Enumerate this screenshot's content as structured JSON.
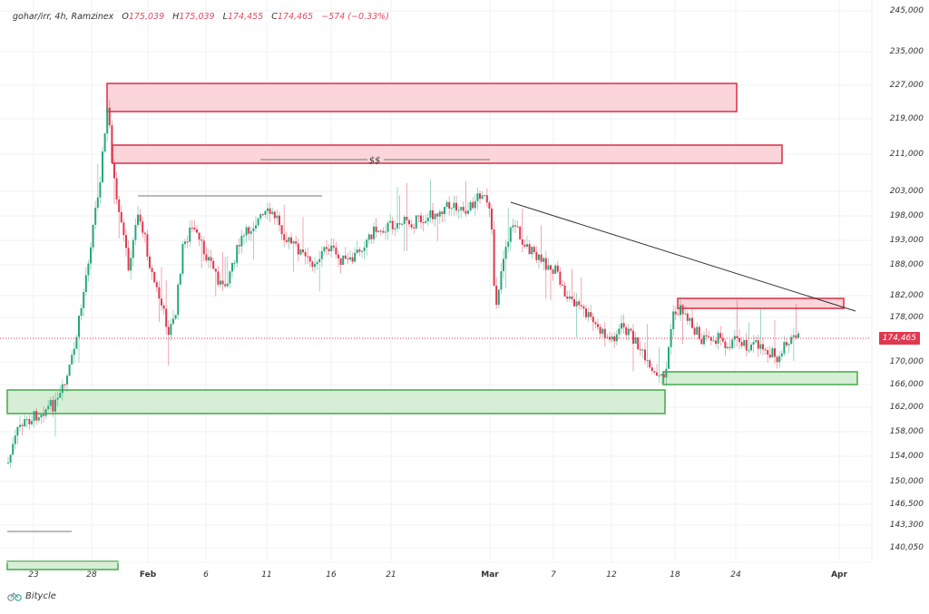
{
  "header": {
    "symbol": "gohar/irr, 4h, Ramzinex",
    "open_label": "O",
    "open": "175,039",
    "high_label": "H",
    "high": "175,039",
    "low_label": "L",
    "low": "174,455",
    "close_label": "C",
    "close": "174,465",
    "change": "−574 (−0.33%)"
  },
  "price_tag": "174,465",
  "brand": {
    "name": "Bitycle",
    "icon": "bicycle-logo-icon"
  },
  "colors": {
    "up": "#26a67a",
    "down": "#e0384f",
    "supply_fill": "#fbd5da",
    "supply_border": "#e0384f",
    "demand_fill": "#d6eed6",
    "demand_border": "#4caf50",
    "grid": "#f0f0f0",
    "trendline": "#333333"
  },
  "chart_data": {
    "type": "candlestick",
    "title": "gohar/irr, 4h, Ramzinex",
    "xlabel": "",
    "ylabel": "",
    "y_ticks": [
      {
        "label": "245,000",
        "y": 12
      },
      {
        "label": "235,000",
        "y": 57
      },
      {
        "label": "227,000",
        "y": 94
      },
      {
        "label": "219,000",
        "y": 131
      },
      {
        "label": "211,000",
        "y": 170
      },
      {
        "label": "203,000",
        "y": 211
      },
      {
        "label": "198,000",
        "y": 238
      },
      {
        "label": "193,000",
        "y": 265
      },
      {
        "label": "188,000",
        "y": 292
      },
      {
        "label": "182,000",
        "y": 326
      },
      {
        "label": "178,000",
        "y": 350
      },
      {
        "label": "170,000",
        "y": 399
      },
      {
        "label": "166,000",
        "y": 424
      },
      {
        "label": "162,000",
        "y": 449
      },
      {
        "label": "158,000",
        "y": 476
      },
      {
        "label": "154,000",
        "y": 503
      },
      {
        "label": "150,000",
        "y": 531
      },
      {
        "label": "146,500",
        "y": 556
      },
      {
        "label": "143,300",
        "y": 579
      },
      {
        "label": "140,050",
        "y": 604
      }
    ],
    "x_ticks": [
      {
        "label": "23",
        "x": 37,
        "month": false
      },
      {
        "label": "28",
        "x": 101,
        "month": false
      },
      {
        "label": "Feb",
        "x": 163,
        "month": true
      },
      {
        "label": "6",
        "x": 227,
        "month": false
      },
      {
        "label": "11",
        "x": 294,
        "month": false
      },
      {
        "label": "16",
        "x": 365,
        "month": false
      },
      {
        "label": "21",
        "x": 431,
        "month": false
      },
      {
        "label": "Mar",
        "x": 540,
        "month": true
      },
      {
        "label": "7",
        "x": 610,
        "month": false
      },
      {
        "label": "12",
        "x": 674,
        "month": false
      },
      {
        "label": "18",
        "x": 744,
        "month": false
      },
      {
        "label": "24",
        "x": 811,
        "month": false
      },
      {
        "label": "Apr",
        "x": 925,
        "month": true
      }
    ],
    "last_price": 174465,
    "ohlc_last": {
      "open": 175039,
      "high": 175039,
      "low": 174455,
      "close": 174465,
      "change": -574,
      "change_pct": -0.33
    },
    "path_points": [
      [
        8,
        510
      ],
      [
        20,
        470
      ],
      [
        35,
        460
      ],
      [
        50,
        450
      ],
      [
        62,
        445
      ],
      [
        72,
        420
      ],
      [
        80,
        390
      ],
      [
        90,
        330
      ],
      [
        100,
        260
      ],
      [
        110,
        190
      ],
      [
        118,
        115
      ],
      [
        122,
        170
      ],
      [
        128,
        230
      ],
      [
        135,
        260
      ],
      [
        142,
        300
      ],
      [
        150,
        230
      ],
      [
        158,
        260
      ],
      [
        166,
        300
      ],
      [
        175,
        330
      ],
      [
        185,
        365
      ],
      [
        192,
        350
      ],
      [
        200,
        275
      ],
      [
        210,
        250
      ],
      [
        220,
        270
      ],
      [
        232,
        290
      ],
      [
        245,
        320
      ],
      [
        255,
        290
      ],
      [
        265,
        265
      ],
      [
        280,
        245
      ],
      [
        295,
        235
      ],
      [
        305,
        240
      ],
      [
        315,
        265
      ],
      [
        328,
        275
      ],
      [
        340,
        290
      ],
      [
        350,
        285
      ],
      [
        360,
        270
      ],
      [
        372,
        285
      ],
      [
        385,
        290
      ],
      [
        395,
        275
      ],
      [
        410,
        255
      ],
      [
        425,
        250
      ],
      [
        440,
        245
      ],
      [
        455,
        245
      ],
      [
        470,
        240
      ],
      [
        485,
        230
      ],
      [
        500,
        225
      ],
      [
        515,
        232
      ],
      [
        530,
        210
      ],
      [
        540,
        240
      ],
      [
        545,
        340
      ],
      [
        555,
        275
      ],
      [
        565,
        245
      ],
      [
        575,
        265
      ],
      [
        590,
        285
      ],
      [
        600,
        290
      ],
      [
        612,
        300
      ],
      [
        622,
        325
      ],
      [
        635,
        335
      ],
      [
        648,
        350
      ],
      [
        660,
        365
      ],
      [
        672,
        375
      ],
      [
        685,
        360
      ],
      [
        695,
        370
      ],
      [
        705,
        385
      ],
      [
        715,
        410
      ],
      [
        725,
        418
      ],
      [
        733,
        410
      ],
      [
        740,
        350
      ],
      [
        750,
        340
      ],
      [
        760,
        355
      ],
      [
        772,
        375
      ],
      [
        785,
        370
      ],
      [
        800,
        380
      ],
      [
        812,
        372
      ],
      [
        825,
        382
      ],
      [
        838,
        380
      ],
      [
        850,
        390
      ],
      [
        858,
        400
      ],
      [
        865,
        378
      ],
      [
        872,
        375
      ],
      [
        880,
        371
      ]
    ],
    "zones": [
      {
        "type": "supply",
        "x1": 118,
        "y1": 92,
        "x2": 812,
        "y2": 123
      },
      {
        "type": "supply",
        "x1": 124,
        "y1": 160,
        "x2": 862,
        "y2": 180
      },
      {
        "type": "supply",
        "x1": 747,
        "y1": 329,
        "x2": 930,
        "y2": 340
      },
      {
        "type": "demand",
        "x1": 8,
        "y1": 430,
        "x2": 733,
        "y2": 456
      },
      {
        "type": "demand",
        "x1": 731,
        "y1": 410,
        "x2": 945,
        "y2": 424
      },
      {
        "type": "demand",
        "x1": 8,
        "y1": 619,
        "x2": 130,
        "y2": 628
      }
    ],
    "lines": [
      {
        "kind": "horizontal",
        "x1": 287,
        "y1": 176,
        "x2": 540,
        "y2": 176,
        "label": "$$",
        "label_x": 413
      },
      {
        "kind": "horizontal",
        "x1": 152,
        "y1": 216,
        "x2": 355,
        "y2": 216
      },
      {
        "kind": "horizontal",
        "x1": 8,
        "y1": 586,
        "x2": 79,
        "y2": 586
      },
      {
        "kind": "trendline",
        "x1": 563,
        "y1": 223,
        "x2": 943,
        "y2": 343
      }
    ],
    "annotations": [
      "$$"
    ],
    "grid": true,
    "legend_position": "top-left"
  }
}
